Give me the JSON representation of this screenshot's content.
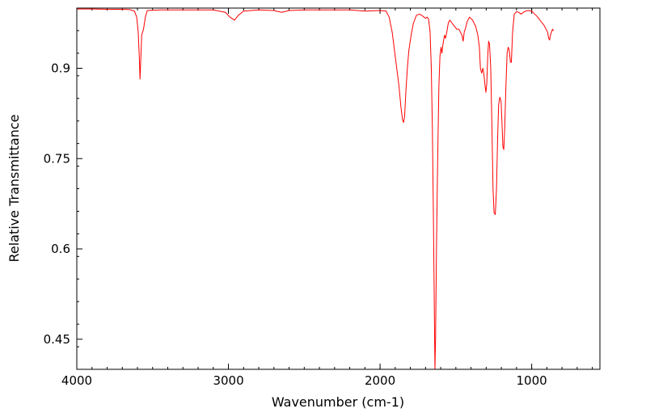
{
  "chart_data": {
    "type": "line",
    "title": "",
    "xlabel": "Wavenumber (cm-1)",
    "ylabel": "Relative Transmittance",
    "xlim": [
      4000,
      550
    ],
    "ylim": [
      0.4,
      1.0
    ],
    "x_reversed": true,
    "x_ticks": [
      {
        "value": 4000,
        "label": "4000"
      },
      {
        "value": 3000,
        "label": "3000"
      },
      {
        "value": 2000,
        "label": "2000"
      },
      {
        "value": 1000,
        "label": "1000"
      }
    ],
    "y_ticks": [
      {
        "value": 0.9,
        "label": "0.9"
      },
      {
        "value": 0.75,
        "label": "0.75"
      },
      {
        "value": 0.6,
        "label": "0.6"
      },
      {
        "value": 0.45,
        "label": "0.45"
      }
    ],
    "grid": false,
    "series": [
      {
        "color": "#ff0000",
        "points": [
          [
            4000,
            0.9985
          ],
          [
            3900,
            0.9985
          ],
          [
            3800,
            0.998
          ],
          [
            3700,
            0.998
          ],
          [
            3650,
            0.9975
          ],
          [
            3620,
            0.995
          ],
          [
            3605,
            0.985
          ],
          [
            3595,
            0.96
          ],
          [
            3588,
            0.92
          ],
          [
            3583,
            0.882
          ],
          [
            3578,
            0.915
          ],
          [
            3572,
            0.955
          ],
          [
            3560,
            0.965
          ],
          [
            3548,
            0.985
          ],
          [
            3535,
            0.996
          ],
          [
            3450,
            0.997
          ],
          [
            3300,
            0.997
          ],
          [
            3100,
            0.997
          ],
          [
            3020,
            0.993
          ],
          [
            2990,
            0.985
          ],
          [
            2960,
            0.98
          ],
          [
            2935,
            0.988
          ],
          [
            2900,
            0.995
          ],
          [
            2800,
            0.997
          ],
          [
            2700,
            0.996
          ],
          [
            2650,
            0.993
          ],
          [
            2600,
            0.996
          ],
          [
            2500,
            0.997
          ],
          [
            2400,
            0.997
          ],
          [
            2300,
            0.997
          ],
          [
            2200,
            0.997
          ],
          [
            2100,
            0.995
          ],
          [
            2000,
            0.996
          ],
          [
            1960,
            0.995
          ],
          [
            1940,
            0.985
          ],
          [
            1920,
            0.96
          ],
          [
            1905,
            0.93
          ],
          [
            1890,
            0.9
          ],
          [
            1875,
            0.87
          ],
          [
            1862,
            0.835
          ],
          [
            1852,
            0.815
          ],
          [
            1845,
            0.81
          ],
          [
            1838,
            0.82
          ],
          [
            1830,
            0.86
          ],
          [
            1820,
            0.9
          ],
          [
            1810,
            0.93
          ],
          [
            1795,
            0.955
          ],
          [
            1780,
            0.975
          ],
          [
            1760,
            0.988
          ],
          [
            1740,
            0.99
          ],
          [
            1720,
            0.987
          ],
          [
            1700,
            0.983
          ],
          [
            1690,
            0.985
          ],
          [
            1680,
            0.982
          ],
          [
            1670,
            0.96
          ],
          [
            1662,
            0.9
          ],
          [
            1655,
            0.8
          ],
          [
            1648,
            0.65
          ],
          [
            1642,
            0.5
          ],
          [
            1638,
            0.4
          ],
          [
            1634,
            0.45
          ],
          [
            1628,
            0.6
          ],
          [
            1620,
            0.75
          ],
          [
            1612,
            0.87
          ],
          [
            1605,
            0.92
          ],
          [
            1598,
            0.935
          ],
          [
            1592,
            0.925
          ],
          [
            1585,
            0.94
          ],
          [
            1575,
            0.955
          ],
          [
            1568,
            0.95
          ],
          [
            1560,
            0.96
          ],
          [
            1550,
            0.975
          ],
          [
            1540,
            0.98
          ],
          [
            1525,
            0.975
          ],
          [
            1510,
            0.97
          ],
          [
            1495,
            0.965
          ],
          [
            1480,
            0.965
          ],
          [
            1470,
            0.96
          ],
          [
            1460,
            0.955
          ],
          [
            1452,
            0.945
          ],
          [
            1445,
            0.96
          ],
          [
            1438,
            0.965
          ],
          [
            1425,
            0.978
          ],
          [
            1410,
            0.985
          ],
          [
            1390,
            0.98
          ],
          [
            1370,
            0.97
          ],
          [
            1355,
            0.955
          ],
          [
            1345,
            0.935
          ],
          [
            1338,
            0.9
          ],
          [
            1330,
            0.892
          ],
          [
            1322,
            0.9
          ],
          [
            1315,
            0.89
          ],
          [
            1308,
            0.872
          ],
          [
            1302,
            0.86
          ],
          [
            1296,
            0.875
          ],
          [
            1290,
            0.92
          ],
          [
            1284,
            0.945
          ],
          [
            1278,
            0.94
          ],
          [
            1270,
            0.9
          ],
          [
            1262,
            0.8
          ],
          [
            1255,
            0.7
          ],
          [
            1248,
            0.66
          ],
          [
            1240,
            0.657
          ],
          [
            1232,
            0.7
          ],
          [
            1225,
            0.78
          ],
          [
            1218,
            0.84
          ],
          [
            1210,
            0.852
          ],
          [
            1202,
            0.845
          ],
          [
            1196,
            0.81
          ],
          [
            1190,
            0.77
          ],
          [
            1184,
            0.765
          ],
          [
            1178,
            0.8
          ],
          [
            1170,
            0.87
          ],
          [
            1162,
            0.925
          ],
          [
            1155,
            0.935
          ],
          [
            1148,
            0.93
          ],
          [
            1140,
            0.91
          ],
          [
            1134,
            0.91
          ],
          [
            1126,
            0.96
          ],
          [
            1115,
            0.99
          ],
          [
            1100,
            0.994
          ],
          [
            1085,
            0.993
          ],
          [
            1070,
            0.99
          ],
          [
            1055,
            0.993
          ],
          [
            1040,
            0.995
          ],
          [
            1020,
            0.996
          ],
          [
            1000,
            0.995
          ],
          [
            980,
            0.99
          ],
          [
            960,
            0.985
          ],
          [
            940,
            0.978
          ],
          [
            920,
            0.972
          ],
          [
            905,
            0.965
          ],
          [
            895,
            0.96
          ],
          [
            888,
            0.95
          ],
          [
            882,
            0.947
          ],
          [
            876,
            0.955
          ],
          [
            870,
            0.96
          ],
          [
            862,
            0.965
          ],
          [
            856,
            0.962
          ]
        ]
      }
    ]
  }
}
